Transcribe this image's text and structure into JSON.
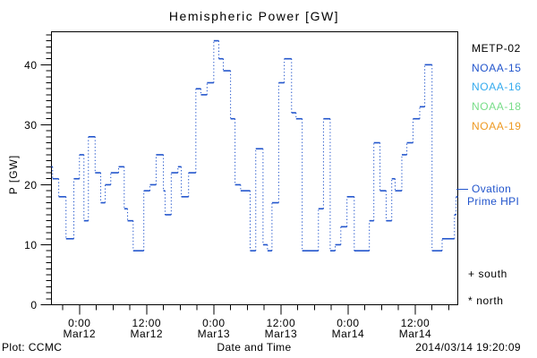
{
  "title": "Hemispheric Power [GW]",
  "colors": {
    "line": "#2255cc",
    "axis": "#000000",
    "background": "#ffffff"
  },
  "legend": {
    "satellites": [
      {
        "label": "METP-02",
        "color": "#000000"
      },
      {
        "label": "NOAA-15",
        "color": "#2255cc"
      },
      {
        "label": "NOAA-16",
        "color": "#33aaee"
      },
      {
        "label": "NOAA-18",
        "color": "#77dd88"
      },
      {
        "label": "NOAA-19",
        "color": "#ee9922"
      }
    ],
    "ovation": {
      "label_line1": "Ovation",
      "label_line2": "Prime HPI",
      "color": "#2255cc"
    },
    "south": {
      "symbol": "+",
      "label": "south"
    },
    "north": {
      "symbol": "*",
      "label": "north"
    }
  },
  "footer": {
    "left": "Plot: CCMC",
    "xlabel": "Date and Time",
    "timestamp": "2014/03/14 19:20:09"
  },
  "chart_data": {
    "type": "line",
    "style": "step-horizontal-solid-vertical-dotted",
    "title": "Hemispheric Power [GW]",
    "xlabel": "Date and Time",
    "ylabel": "P [GW]",
    "ylim": [
      0,
      45.5
    ],
    "y_major_ticks": [
      0,
      10,
      20,
      30,
      40
    ],
    "y_minor_step": 1,
    "x_range_hours": [
      0,
      72.6
    ],
    "x_axis_note": "hour 0 = 2014 Mar 11 ~19:00 UT",
    "x_major_ticks": [
      {
        "hour": 5,
        "time": "0:00",
        "date": "Mar12"
      },
      {
        "hour": 17,
        "time": "12:00",
        "date": "Mar12"
      },
      {
        "hour": 29,
        "time": "0:00",
        "date": "Mar13"
      },
      {
        "hour": 41,
        "time": "12:00",
        "date": "Mar13"
      },
      {
        "hour": 53,
        "time": "0:00",
        "date": "Mar14"
      },
      {
        "hour": 65,
        "time": "12:00",
        "date": "Mar14"
      }
    ],
    "x_minor_start_hour": 2,
    "x_minor_step_hours": 3,
    "grid": false,
    "legend_position": "right",
    "series_name": "Ovation Prime HPI",
    "segments": [
      [
        0,
        23
      ],
      [
        0.2,
        21
      ],
      [
        1.3,
        18
      ],
      [
        2.6,
        11
      ],
      [
        4.0,
        21
      ],
      [
        5.0,
        25
      ],
      [
        5.8,
        14
      ],
      [
        6.6,
        28
      ],
      [
        7.8,
        22
      ],
      [
        8.8,
        17
      ],
      [
        9.6,
        20
      ],
      [
        10.6,
        22
      ],
      [
        12.0,
        23
      ],
      [
        13.0,
        16
      ],
      [
        13.6,
        14
      ],
      [
        14.6,
        9
      ],
      [
        16.5,
        19
      ],
      [
        17.6,
        20
      ],
      [
        18.7,
        25
      ],
      [
        20.0,
        19
      ],
      [
        20.3,
        15
      ],
      [
        21.4,
        22
      ],
      [
        22.6,
        23
      ],
      [
        23.2,
        18
      ],
      [
        24.5,
        22
      ],
      [
        25.8,
        36
      ],
      [
        26.7,
        35
      ],
      [
        27.8,
        37
      ],
      [
        29.0,
        44
      ],
      [
        29.9,
        41
      ],
      [
        30.7,
        39
      ],
      [
        32.0,
        31
      ],
      [
        32.8,
        20
      ],
      [
        33.8,
        19
      ],
      [
        35.5,
        9
      ],
      [
        36.5,
        26
      ],
      [
        37.8,
        10
      ],
      [
        38.6,
        9
      ],
      [
        39.4,
        17
      ],
      [
        40.6,
        37
      ],
      [
        41.6,
        41
      ],
      [
        42.9,
        32
      ],
      [
        43.7,
        31
      ],
      [
        44.8,
        9
      ],
      [
        47.7,
        16
      ],
      [
        48.6,
        31
      ],
      [
        49.8,
        9
      ],
      [
        50.7,
        10
      ],
      [
        51.7,
        13
      ],
      [
        52.8,
        18
      ],
      [
        54.1,
        9
      ],
      [
        56.8,
        14
      ],
      [
        57.6,
        27
      ],
      [
        58.7,
        19
      ],
      [
        59.8,
        14
      ],
      [
        60.8,
        21
      ],
      [
        61.4,
        19
      ],
      [
        62.6,
        25
      ],
      [
        63.5,
        27
      ],
      [
        64.6,
        31
      ],
      [
        65.8,
        33
      ],
      [
        66.7,
        40
      ],
      [
        68.0,
        9
      ],
      [
        69.8,
        11
      ],
      [
        72.0,
        15
      ],
      [
        72.3,
        18
      ]
    ],
    "end_hour": 72.6
  }
}
